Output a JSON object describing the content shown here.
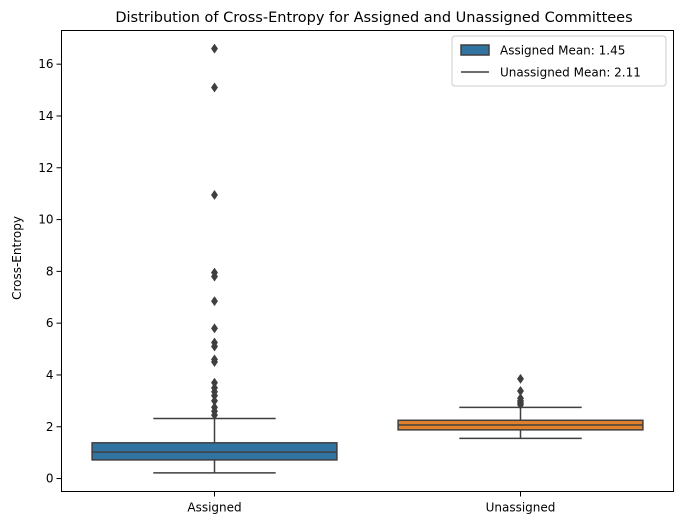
{
  "chart_data": {
    "type": "box",
    "title": "Distribution of Cross-Entropy for Assigned and Unassigned Committees",
    "xlabel": "",
    "ylabel": "Cross-Entropy",
    "ylim": [
      -0.5,
      17.3
    ],
    "yticks": [
      0,
      2,
      4,
      6,
      8,
      10,
      12,
      14,
      16
    ],
    "categories": [
      "Assigned",
      "Unassigned"
    ],
    "grid": false,
    "legend_position": "top-right",
    "legend": [
      {
        "label": "Assigned Mean: 1.45",
        "kind": "patch",
        "color": "#3274a1"
      },
      {
        "label": "Unassigned Mean: 2.11",
        "kind": "line",
        "color": "#3f3f3f"
      }
    ],
    "boxes": [
      {
        "category": "Assigned",
        "color": "#3274a1",
        "whisker_low": 0.22,
        "q1": 0.72,
        "median": 1.02,
        "q3": 1.38,
        "whisker_high": 2.32,
        "outliers": [
          2.45,
          2.6,
          2.75,
          3.0,
          3.2,
          3.35,
          3.5,
          3.7,
          4.5,
          4.6,
          5.1,
          5.25,
          5.8,
          6.85,
          7.8,
          7.95,
          10.95,
          15.1,
          16.6
        ]
      },
      {
        "category": "Unassigned",
        "color": "#e1812c",
        "whisker_low": 1.55,
        "q1": 1.88,
        "median": 2.07,
        "q3": 2.25,
        "whisker_high": 2.75,
        "outliers": [
          2.85,
          2.92,
          3.0,
          3.1,
          3.38,
          3.85
        ]
      }
    ]
  }
}
